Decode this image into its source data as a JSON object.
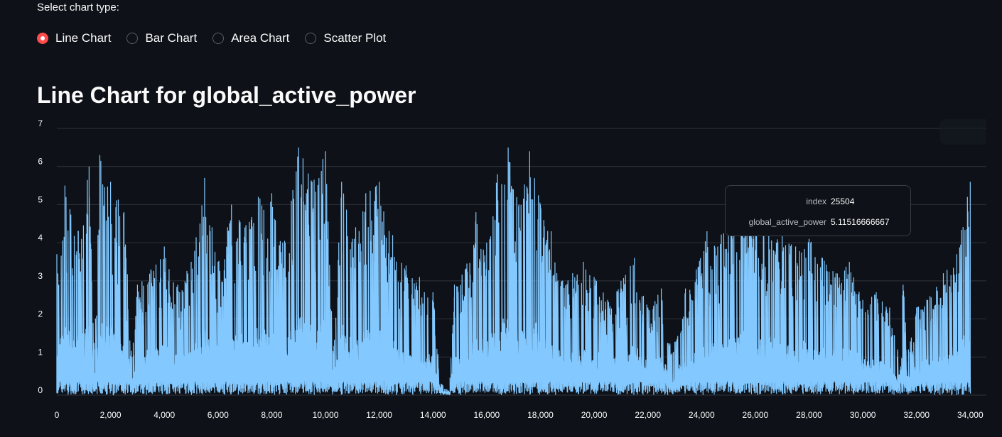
{
  "controls": {
    "select_label": "Select chart type:",
    "options": [
      {
        "label": "Line Chart",
        "selected": true
      },
      {
        "label": "Bar Chart",
        "selected": false
      },
      {
        "label": "Area Chart",
        "selected": false
      },
      {
        "label": "Scatter Plot",
        "selected": false
      }
    ],
    "accent_color": "#ff4b4b"
  },
  "tooltip": {
    "index_label": "index",
    "index_value": "25504",
    "value_label": "global_active_power",
    "value_value": "5.11516666667"
  },
  "chart_data": {
    "type": "line",
    "title": "Line Chart for global_active_power",
    "xlabel": "",
    "ylabel": "",
    "xlim": [
      0,
      34600
    ],
    "ylim": [
      0,
      7
    ],
    "x_ticks": [
      0,
      2000,
      4000,
      6000,
      8000,
      10000,
      12000,
      14000,
      16000,
      18000,
      20000,
      22000,
      24000,
      26000,
      28000,
      30000,
      32000,
      34000
    ],
    "x_tick_labels": [
      "0",
      "2,000",
      "4,000",
      "6,000",
      "8,000",
      "10,000",
      "12,000",
      "14,000",
      "16,000",
      "18,000",
      "20,000",
      "22,000",
      "24,000",
      "26,000",
      "28,000",
      "30,000",
      "32,000",
      "34,000"
    ],
    "y_ticks": [
      0,
      1,
      2,
      3,
      4,
      5,
      6,
      7
    ],
    "y_tick_labels": [
      "0",
      "1",
      "2",
      "3",
      "4",
      "5",
      "6",
      "7"
    ],
    "grid": true,
    "legend": "none",
    "line_color": "#83c9ff",
    "series": [
      {
        "x": [
          0,
          300,
          800,
          1200,
          1400,
          1600,
          2000,
          2500,
          2800,
          3000,
          3500,
          4000,
          4500,
          5000,
          5500,
          6000,
          6500,
          7000,
          7500,
          8000,
          8500,
          9000,
          9500,
          10000,
          10300,
          10600,
          11000,
          11500,
          12000,
          12500,
          13000,
          13500,
          14000,
          14300,
          14600,
          14800,
          15200,
          15600,
          16000,
          16400,
          16800,
          17200,
          17600,
          18000,
          18400,
          18800,
          19200,
          19600,
          20000,
          20500,
          21000,
          21500,
          22000,
          22500,
          22900,
          23400,
          23800,
          24200,
          24600,
          25000,
          25504,
          26000,
          26500,
          27000,
          27500,
          28000,
          28500,
          29000,
          29500,
          30000,
          30500,
          31000,
          31300,
          31500,
          31700,
          32000,
          32500,
          33000,
          33500,
          34000
        ],
        "y": [
          3.7,
          5.5,
          4.3,
          6.0,
          1.2,
          6.3,
          5.6,
          4.8,
          1.0,
          2.9,
          3.3,
          3.9,
          2.9,
          3.5,
          5.7,
          3.5,
          5.0,
          4.4,
          5.2,
          5.3,
          4.0,
          6.5,
          5.6,
          6.4,
          1.1,
          5.6,
          4.1,
          5.3,
          5.6,
          4.2,
          3.4,
          3.1,
          2.7,
          0.3,
          0.1,
          2.9,
          3.3,
          4.8,
          4.0,
          5.8,
          6.5,
          5.0,
          6.4,
          5.0,
          4.3,
          3.0,
          3.2,
          3.5,
          3.1,
          2.5,
          3.0,
          3.6,
          2.3,
          2.8,
          1.1,
          2.8,
          3.3,
          4.3,
          3.9,
          4.9,
          5.12,
          4.8,
          4.5,
          4.2,
          3.9,
          4.1,
          3.6,
          3.2,
          3.5,
          2.5,
          2.7,
          2.3,
          1.2,
          2.9,
          1.2,
          2.3,
          2.6,
          3.2,
          3.7,
          5.6
        ]
      }
    ]
  }
}
